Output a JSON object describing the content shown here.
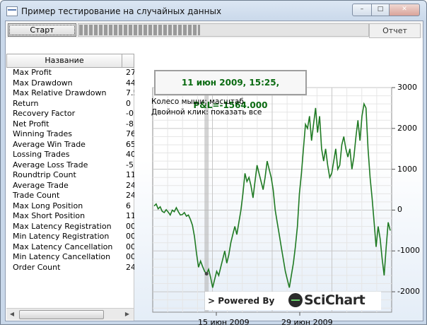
{
  "window": {
    "title": "Пример тестирование на случайных данных",
    "icon": "app-icon",
    "controls": {
      "min": "–",
      "max": "□",
      "close": "✕"
    }
  },
  "toolbar": {
    "start_label": "Старт",
    "report_label": "Отчет",
    "progress": 0.42
  },
  "table": {
    "header": "Название",
    "rows": [
      {
        "name": "Max Profit",
        "value": "27"
      },
      {
        "name": "Max Drawdown",
        "value": "44"
      },
      {
        "name": "Max Relative Drawdown",
        "value": "7.5"
      },
      {
        "name": "Return",
        "value": "0"
      },
      {
        "name": "Recovery Factor",
        "value": "-0"
      },
      {
        "name": "Net Profit",
        "value": "-8"
      },
      {
        "name": "Winning Trades",
        "value": "76"
      },
      {
        "name": "Average Win Trade",
        "value": "65"
      },
      {
        "name": "Lossing Trades",
        "value": "40"
      },
      {
        "name": "Average Loss Trade",
        "value": "-5"
      },
      {
        "name": "Roundtrip Count",
        "value": "11"
      },
      {
        "name": "Average Trade",
        "value": "24"
      },
      {
        "name": "Trade Count",
        "value": "24"
      },
      {
        "name": "Max Long Position",
        "value": "6"
      },
      {
        "name": "Max Short Position",
        "value": "11"
      },
      {
        "name": "Max Latency Registration",
        "value": "00"
      },
      {
        "name": "Min Latency Registration",
        "value": "00"
      },
      {
        "name": "Max Latency Cancellation",
        "value": "00"
      },
      {
        "name": "Min Latency Cancellation",
        "value": "00"
      },
      {
        "name": "Order Count",
        "value": "24"
      }
    ]
  },
  "chart": {
    "tooltip": "11 июн 2009, 15:25, P&L=-1564.000",
    "hint1": "Колесо мыши: масштаб",
    "hint2": "Двойной клик: показать все",
    "powered": "> Powered By",
    "brand": "SciChart"
  },
  "chart_data": {
    "type": "line",
    "x_tick_labels": [
      "15 июн 2009",
      "29 июн 2009"
    ],
    "y_ticks": [
      3000,
      2000,
      1000,
      0,
      -1000,
      -2000
    ],
    "ylim": [
      -2500,
      3000
    ],
    "grid": true,
    "line_color": "#1f7a23",
    "series": [
      {
        "values": [
          100,
          150,
          30,
          80,
          -30,
          -60,
          10,
          -50,
          -120,
          0,
          -40,
          60,
          -40,
          -120,
          -110,
          -60,
          -150,
          -120,
          -230,
          -370,
          -650,
          -1050,
          -1400,
          -1250,
          -1380,
          -1500,
          -1560,
          -1450,
          -1650,
          -1900,
          -1700,
          -1500,
          -1600,
          -1400,
          -1200,
          -1000,
          -1300,
          -1100,
          -800,
          -600,
          -400,
          -600,
          -300,
          0,
          400,
          900,
          700,
          800,
          600,
          300,
          700,
          1100,
          900,
          700,
          500,
          800,
          1200,
          1000,
          800,
          500,
          0,
          -300,
          -600,
          -900,
          -1200,
          -1500,
          -1700,
          -1900,
          -1600,
          -1300,
          -900,
          -400,
          400,
          900,
          1500,
          2100,
          2000,
          2300,
          1700,
          2100,
          2500,
          1900,
          2300,
          1500,
          1200,
          1500,
          1100,
          800,
          900,
          1200,
          1500,
          1000,
          1100,
          1600,
          1800,
          1500,
          1300,
          1500,
          1000,
          1300,
          1800,
          2200,
          1700,
          2300,
          2600,
          2500,
          1500,
          800,
          300,
          -300,
          -900,
          -400,
          -700,
          -1200,
          -1600,
          -900,
          -300,
          -500
        ]
      }
    ]
  }
}
